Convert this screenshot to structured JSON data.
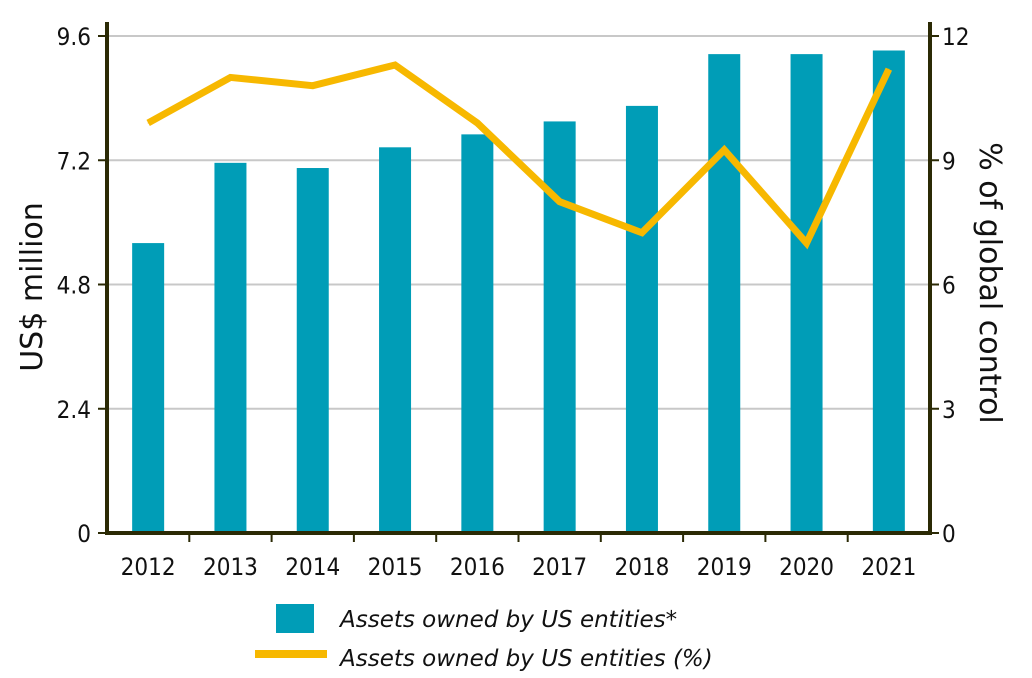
{
  "chart_data": {
    "type": "bar",
    "categories": [
      "2012",
      "2013",
      "2014",
      "2015",
      "2016",
      "2017",
      "2018",
      "2019",
      "2020",
      "2021"
    ],
    "series": [
      {
        "name": "Assets owned by US entities*",
        "type": "bar",
        "axis": "left",
        "color": "#009db7",
        "values": [
          5.6,
          7.15,
          7.05,
          7.45,
          7.7,
          7.95,
          8.25,
          9.25,
          9.25,
          9.32
        ]
      },
      {
        "name": "Assets owned by US entities (%)",
        "type": "line",
        "axis": "right",
        "color": "#f7b800",
        "values": [
          9.9,
          11.0,
          10.8,
          11.3,
          9.9,
          8.0,
          7.25,
          9.25,
          7.0,
          11.2
        ]
      }
    ],
    "ylabel": "US$ million",
    "y2label": "% of global control",
    "ylim": [
      0,
      9.6
    ],
    "y2lim": [
      0,
      12
    ],
    "yticks": [
      "0",
      "2.4",
      "4.8",
      "7.2",
      "9.6"
    ],
    "y2ticks": [
      "0",
      "3",
      "6",
      "9",
      "12"
    ],
    "grid": true,
    "legend_position": "bottom",
    "axis_color": "#2b2a05",
    "grid_color": "#c8c8c8"
  }
}
